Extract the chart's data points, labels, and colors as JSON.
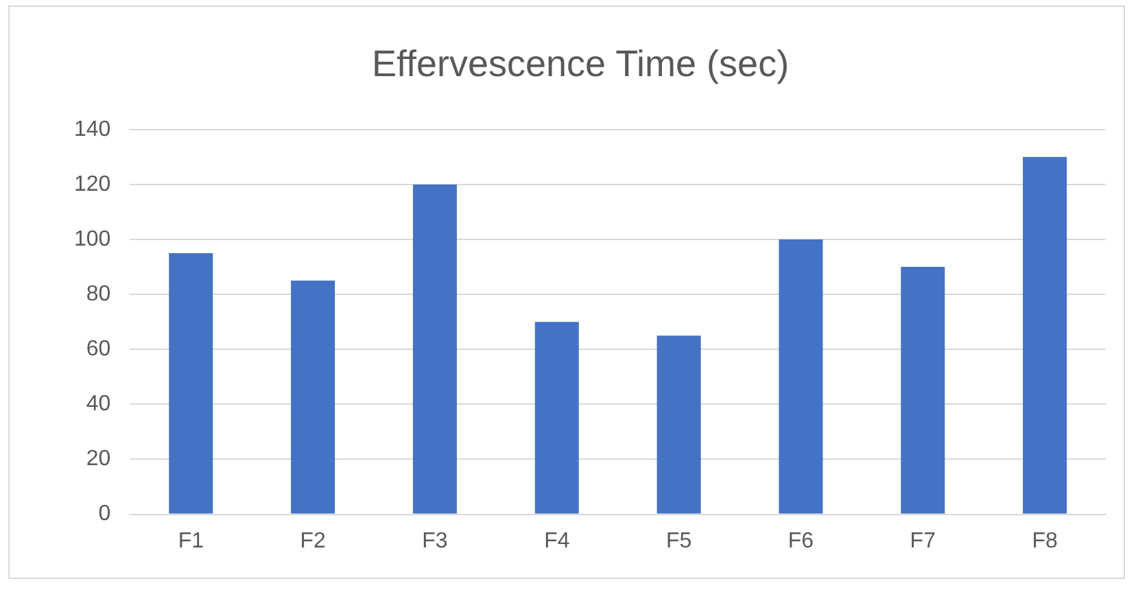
{
  "chart_data": {
    "type": "bar",
    "title": "Effervescence Time (sec)",
    "categories": [
      "F1",
      "F2",
      "F3",
      "F4",
      "F5",
      "F6",
      "F7",
      "F8"
    ],
    "values": [
      95,
      85,
      120,
      70,
      65,
      100,
      90,
      130
    ],
    "color": "#4472c4",
    "ylim": [
      0,
      140
    ],
    "yticks": [
      0,
      20,
      40,
      60,
      80,
      100,
      120,
      140
    ],
    "grid": "y",
    "legend": false
  }
}
